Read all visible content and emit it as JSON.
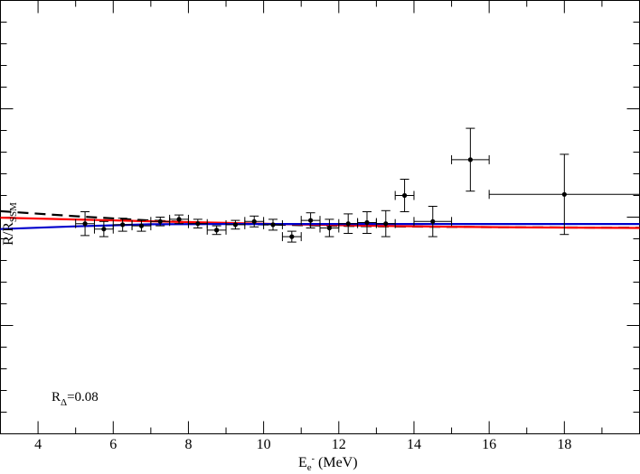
{
  "chart_data": {
    "type": "scatter",
    "title": "",
    "xlabel": {
      "main": "E",
      "sub": "e",
      "sup": "-",
      "tail": " (MeV)"
    },
    "ylabel": {
      "main": "R/R",
      "sub": "SSM"
    },
    "xlim": [
      3,
      20
    ],
    "ylim": [
      0.25,
      0.65
    ],
    "xticks": [
      4,
      6,
      8,
      10,
      12,
      14,
      16,
      18
    ],
    "annotation": {
      "main": "R",
      "sub": "Δ",
      "tail": "=0.08"
    },
    "grid": false,
    "legend": "none",
    "points": [
      {
        "x": 5.25,
        "y": 0.444,
        "xerr": 0.25,
        "yerr": 0.011
      },
      {
        "x": 5.75,
        "y": 0.439,
        "xerr": 0.25,
        "yerr": 0.007
      },
      {
        "x": 6.25,
        "y": 0.443,
        "xerr": 0.25,
        "yerr": 0.006
      },
      {
        "x": 6.75,
        "y": 0.442,
        "xerr": 0.25,
        "yerr": 0.005
      },
      {
        "x": 7.25,
        "y": 0.446,
        "xerr": 0.25,
        "yerr": 0.004
      },
      {
        "x": 7.75,
        "y": 0.448,
        "xerr": 0.25,
        "yerr": 0.004
      },
      {
        "x": 8.25,
        "y": 0.444,
        "xerr": 0.25,
        "yerr": 0.004
      },
      {
        "x": 8.75,
        "y": 0.438,
        "xerr": 0.25,
        "yerr": 0.004
      },
      {
        "x": 9.25,
        "y": 0.443,
        "xerr": 0.25,
        "yerr": 0.004
      },
      {
        "x": 9.75,
        "y": 0.446,
        "xerr": 0.25,
        "yerr": 0.005
      },
      {
        "x": 10.25,
        "y": 0.443,
        "xerr": 0.25,
        "yerr": 0.005
      },
      {
        "x": 10.75,
        "y": 0.432,
        "xerr": 0.25,
        "yerr": 0.005
      },
      {
        "x": 11.25,
        "y": 0.447,
        "xerr": 0.25,
        "yerr": 0.007
      },
      {
        "x": 11.75,
        "y": 0.44,
        "xerr": 0.25,
        "yerr": 0.008
      },
      {
        "x": 12.25,
        "y": 0.444,
        "xerr": 0.25,
        "yerr": 0.009
      },
      {
        "x": 12.75,
        "y": 0.445,
        "xerr": 0.25,
        "yerr": 0.01
      },
      {
        "x": 13.25,
        "y": 0.444,
        "xerr": 0.25,
        "yerr": 0.012
      },
      {
        "x": 13.75,
        "y": 0.47,
        "xerr": 0.25,
        "yerr": 0.015
      },
      {
        "x": 14.5,
        "y": 0.446,
        "xerr": 0.5,
        "yerr": 0.014
      },
      {
        "x": 15.5,
        "y": 0.503,
        "xerr": 0.5,
        "yerr": 0.029
      },
      {
        "x": 18.0,
        "y": 0.471,
        "xerr": 2.0,
        "yerr": 0.037
      }
    ],
    "series": [
      {
        "color": "#000000",
        "style": "dashed",
        "x": [
          3,
          5,
          7,
          9,
          11,
          13,
          15,
          17,
          20
        ],
        "y": [
          0.4555,
          0.4508,
          0.4468,
          0.4441,
          0.4426,
          0.4416,
          0.441,
          0.4406,
          0.4402
        ]
      },
      {
        "color": "#ff0000",
        "style": "solid",
        "x": [
          3,
          5,
          7,
          9,
          11,
          13,
          15,
          17,
          20
        ],
        "y": [
          0.4495,
          0.4478,
          0.4462,
          0.4447,
          0.4432,
          0.442,
          0.4411,
          0.4405,
          0.44
        ]
      },
      {
        "color": "#0000cc",
        "style": "solid",
        "x": [
          3,
          5,
          7,
          9,
          11,
          13,
          15,
          17,
          20
        ],
        "y": [
          0.439,
          0.4415,
          0.4434,
          0.4437,
          0.4437,
          0.4437,
          0.4437,
          0.4437,
          0.4437
        ]
      }
    ]
  }
}
